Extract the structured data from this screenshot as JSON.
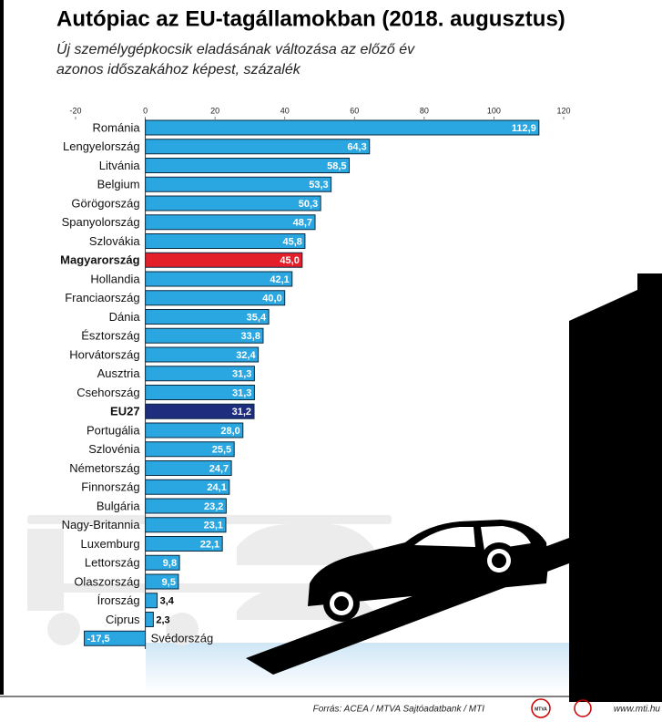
{
  "chart_data": {
    "type": "barh",
    "title": "Autópiac az EU-tagállamokban (2018. augusztus)",
    "subtitle": [
      "Új személygépkocsik eladásának változása az előző év",
      "azonos időszakához képest, százalék"
    ],
    "categories": [
      "Románia",
      "Lengyelország",
      "Litvánia",
      "Belgium",
      "Görögország",
      "Spanyolország",
      "Szlovákia",
      "Magyarország",
      "Hollandia",
      "Franciaország",
      "Dánia",
      "Észtország",
      "Horvátország",
      "Ausztria",
      "Csehország",
      "EU27",
      "Portugália",
      "Szlovénia",
      "Németország",
      "Finnország",
      "Bulgária",
      "Nagy-Britannia",
      "Luxemburg",
      "Lettország",
      "Olaszország",
      "Írország",
      "Ciprus",
      "Svédország"
    ],
    "values": [
      112.9,
      64.3,
      58.5,
      53.3,
      50.3,
      48.7,
      45.8,
      45.0,
      42.1,
      40.0,
      35.4,
      33.8,
      32.4,
      31.3,
      31.3,
      31.2,
      28.0,
      25.5,
      24.7,
      24.1,
      23.2,
      23.1,
      22.1,
      9.8,
      9.5,
      3.4,
      2.3,
      -17.5
    ],
    "value_labels": [
      "112,9",
      "64,3",
      "58,5",
      "53,3",
      "50,3",
      "48,7",
      "45,8",
      "45,0",
      "42,1",
      "40,0",
      "35,4",
      "33,8",
      "32,4",
      "31,3",
      "31,3",
      "31,2",
      "28,0",
      "25,5",
      "24,7",
      "24,1",
      "23,2",
      "23,1",
      "22,1",
      "9,8",
      "9,5",
      "3,4",
      "2,3",
      "-17,5"
    ],
    "color": "#2aa6e0",
    "colors": [
      "#2aa6e0",
      "#2aa6e0",
      "#2aa6e0",
      "#2aa6e0",
      "#2aa6e0",
      "#2aa6e0",
      "#2aa6e0",
      "#e3202a",
      "#2aa6e0",
      "#2aa6e0",
      "#2aa6e0",
      "#2aa6e0",
      "#2aa6e0",
      "#2aa6e0",
      "#2aa6e0",
      "#1e2d7d",
      "#2aa6e0",
      "#2aa6e0",
      "#2aa6e0",
      "#2aa6e0",
      "#2aa6e0",
      "#2aa6e0",
      "#2aa6e0",
      "#2aa6e0",
      "#2aa6e0",
      "#2aa6e0",
      "#2aa6e0",
      "#2aa6e0"
    ],
    "xlim": [
      -20,
      120
    ],
    "xticks": [
      -20,
      0,
      20,
      40,
      60,
      80,
      100,
      120
    ],
    "source": "Forrás: ACEA / MTVA Sajtóadatbank / MTI",
    "logo": "MTVA",
    "url": "www.mti.hu"
  }
}
